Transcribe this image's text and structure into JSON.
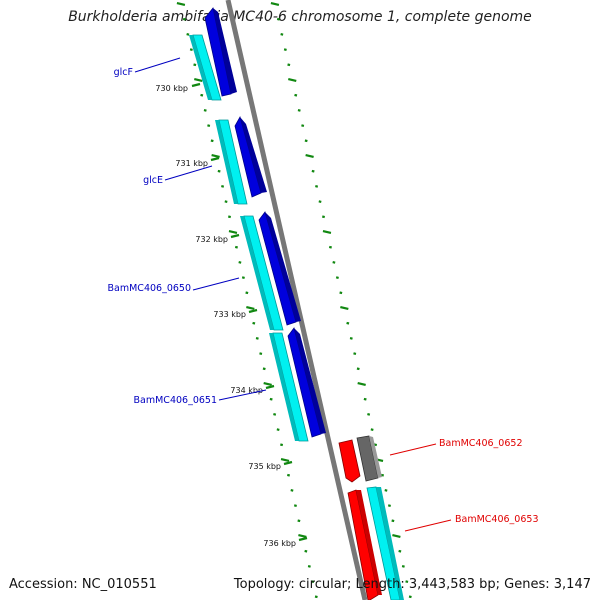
{
  "title": "Burkholderia ambifaria MC40-6 chromosome 1, complete genome",
  "accession_label": "Accession: NC_010551",
  "topology_label": "Topology: circular; Length: 3,443,583 bp; Genes: 3,147",
  "ticks": [
    {
      "label": "730 kbp"
    },
    {
      "label": "731 kbp"
    },
    {
      "label": "732 kbp"
    },
    {
      "label": "733 kbp"
    },
    {
      "label": "734 kbp"
    },
    {
      "label": "735 kbp"
    },
    {
      "label": "736 kbp"
    }
  ],
  "genes": [
    {
      "name": "glcF",
      "strand": "forward",
      "color": "#0000c0"
    },
    {
      "name": "glcE",
      "strand": "forward",
      "color": "#0000c0"
    },
    {
      "name": "BamMC406_0650",
      "strand": "forward",
      "color": "#0000c0"
    },
    {
      "name": "BamMC406_0651",
      "strand": "forward",
      "color": "#0000c0"
    },
    {
      "name": "BamMC406_0652",
      "strand": "reverse",
      "color": "#e00000"
    },
    {
      "name": "BamMC406_0653",
      "strand": "reverse",
      "color": "#e00000"
    }
  ],
  "colors": {
    "cds_forward": "#0000dd",
    "cds_reverse": "#ff0000",
    "cds_other": "#555555",
    "orf": "#00e0e0",
    "backbone": "#808080",
    "ticks": "#007700"
  }
}
